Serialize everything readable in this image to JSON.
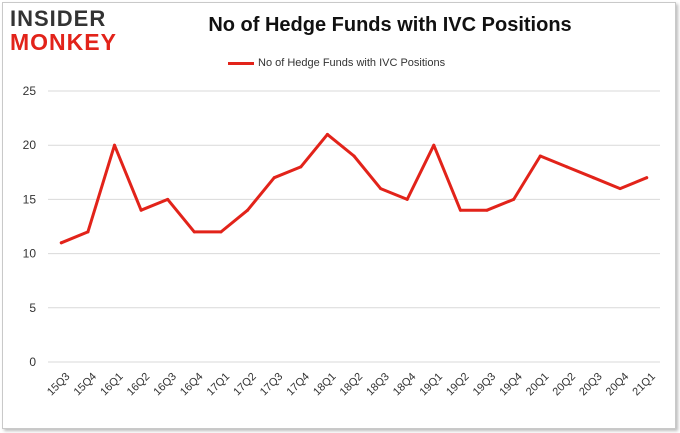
{
  "logo": {
    "line1": "INSIDER",
    "line2": "MONKEY"
  },
  "colors": {
    "series": "#e2231a",
    "grid": "#d9d9d9",
    "axis_text": "#333333"
  },
  "chart_data": {
    "type": "line",
    "title": "No of Hedge Funds with IVC Positions",
    "xlabel": "",
    "ylabel": "",
    "ylim": [
      0,
      25
    ],
    "yticks": [
      0,
      5,
      10,
      15,
      20,
      25
    ],
    "grid": true,
    "legend": "top-center",
    "categories": [
      "15Q3",
      "15Q4",
      "16Q1",
      "16Q2",
      "16Q3",
      "16Q4",
      "17Q1",
      "17Q2",
      "17Q3",
      "17Q4",
      "18Q1",
      "18Q2",
      "18Q3",
      "18Q4",
      "19Q1",
      "19Q2",
      "19Q3",
      "19Q4",
      "20Q1",
      "20Q2",
      "20Q3",
      "20Q4",
      "21Q1"
    ],
    "series": [
      {
        "name": "No of Hedge Funds with IVC Positions",
        "values": [
          11,
          12,
          20,
          14,
          15,
          12,
          12,
          14,
          17,
          18,
          21,
          19,
          16,
          15,
          20,
          14,
          14,
          15,
          19,
          18,
          17,
          16,
          17
        ]
      }
    ]
  }
}
